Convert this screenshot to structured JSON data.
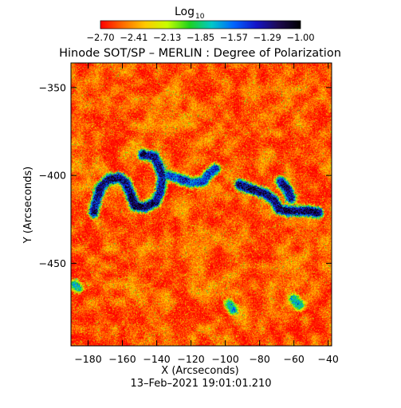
{
  "colorbar": {
    "title": "Log",
    "title_subscript": "10",
    "ticks": [
      "−2.70",
      "−2.41",
      "−2.13",
      "−1.85",
      "−1.57",
      "−1.29",
      "−1.00"
    ],
    "range": [
      -2.7,
      -1.0
    ],
    "colors": [
      "#ff0000",
      "#ff6a00",
      "#ffc800",
      "#c8ff00",
      "#1ed21e",
      "#00c8c8",
      "#0064ff",
      "#1414c8",
      "#1e0a50",
      "#000000"
    ]
  },
  "chart_data": {
    "type": "heatmap",
    "title": "Hinode SOT/SP – MERLIN : Degree of Polarization",
    "xlabel": "X (Arcseconds)",
    "ylabel": "Y (Arcseconds)",
    "xlim": [
      -190,
      -38
    ],
    "ylim": [
      -497,
      -336
    ],
    "xticks": [
      -180,
      -160,
      -140,
      -120,
      -100,
      -80,
      -60,
      -40
    ],
    "xtick_labels": [
      "−180",
      "−160",
      "−140",
      "−120",
      "−100",
      "−80",
      "−60",
      "−40"
    ],
    "yticks": [
      -350,
      -400,
      -450
    ],
    "ytick_labels": [
      "−350",
      "−400",
      "−450"
    ],
    "value_scale": "log10",
    "value_range": [
      -2.7,
      -1.0
    ],
    "background_level": -2.55,
    "features": [
      {
        "name": "loop-left",
        "points": [
          [
            -177,
            -421
          ],
          [
            -175,
            -413
          ],
          [
            -173,
            -407
          ],
          [
            -168,
            -402
          ],
          [
            -162,
            -401
          ],
          [
            -158,
            -404
          ],
          [
            -156,
            -409
          ],
          [
            -153,
            -417
          ],
          [
            -147,
            -418
          ],
          [
            -141,
            -415
          ],
          [
            -138,
            -409
          ],
          [
            -137,
            -401
          ],
          [
            -139,
            -394
          ],
          [
            -142,
            -389
          ],
          [
            -148,
            -388
          ]
        ],
        "peak": -1.05
      },
      {
        "name": "arc-middle",
        "points": [
          [
            -133,
            -400
          ],
          [
            -127,
            -402
          ],
          [
            -120,
            -404
          ],
          [
            -113,
            -403
          ],
          [
            -110,
            -399
          ],
          [
            -106,
            -396
          ]
        ],
        "peak": -1.25
      },
      {
        "name": "band-right",
        "points": [
          [
            -92,
            -405
          ],
          [
            -84,
            -408
          ],
          [
            -77,
            -410
          ],
          [
            -72,
            -414
          ],
          [
            -69,
            -419
          ],
          [
            -64,
            -420
          ],
          [
            -58,
            -420
          ],
          [
            -52,
            -420
          ],
          [
            -46,
            -421
          ]
        ],
        "peak": -1.0
      },
      {
        "name": "patch-right-top",
        "points": [
          [
            -68,
            -403
          ],
          [
            -64,
            -408
          ],
          [
            -62,
            -413
          ]
        ],
        "peak": -1.1
      },
      {
        "name": "dot-lower-left",
        "points": [
          [
            -188,
            -462
          ],
          [
            -186,
            -464
          ]
        ],
        "peak": -1.6
      },
      {
        "name": "dot-lower-mid",
        "points": [
          [
            -98,
            -473
          ],
          [
            -96,
            -476
          ]
        ],
        "peak": -1.6
      },
      {
        "name": "dot-lower-right",
        "points": [
          [
            -60,
            -470
          ],
          [
            -57,
            -474
          ]
        ],
        "peak": -1.7
      }
    ]
  },
  "timestamp": "13–Feb–2021 19:01:01.210"
}
